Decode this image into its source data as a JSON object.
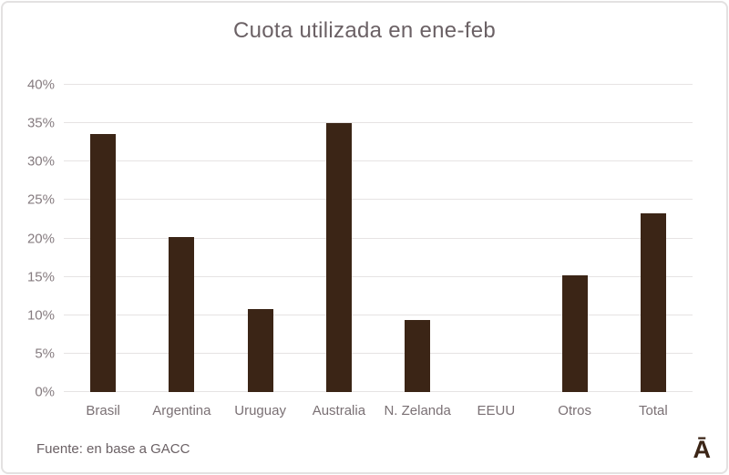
{
  "title": "Cuota utilizada en ene-feb",
  "footer": {
    "source": "Fuente: en base a GACC",
    "logo": "Ā"
  },
  "colors": {
    "bar": "#3b2516",
    "title_text": "#6b6165",
    "axis_label": "#857b7f",
    "gridline": "#e6e3e3",
    "frame_border": "#e3e1e1",
    "background": "#ffffff"
  },
  "chart_data": {
    "type": "bar",
    "title": "Cuota utilizada en ene-feb",
    "categories": [
      "Brasil",
      "Argentina",
      "Uruguay",
      "Australia",
      "N. Zelanda",
      "EEUU",
      "Otros",
      "Total"
    ],
    "values": [
      33.6,
      20.2,
      10.8,
      35.0,
      9.4,
      0,
      15.2,
      23.3
    ],
    "unit": "%",
    "xlabel": "",
    "ylabel": "",
    "ylim": [
      0,
      40
    ],
    "ytick_step": 5,
    "ytick_labels": [
      "0%",
      "5%",
      "10%",
      "15%",
      "20%",
      "25%",
      "30%",
      "35%",
      "40%"
    ],
    "grid": true,
    "legend": false,
    "annotation": "Fuente: en base a GACC"
  }
}
